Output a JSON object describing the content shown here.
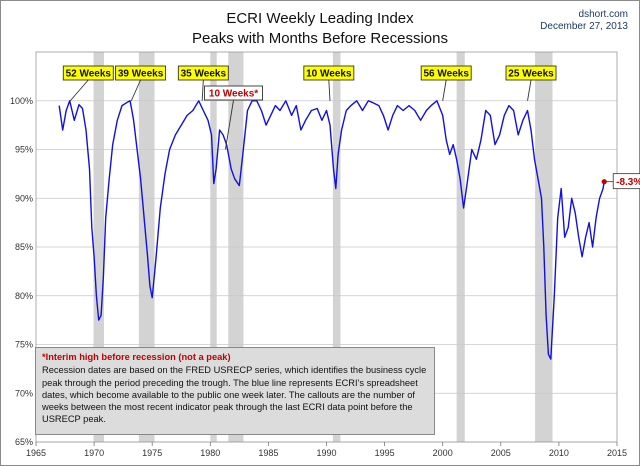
{
  "header": {
    "title_line1": "ECRI Weekly Leading Index",
    "title_line2": "Peaks with Months Before Recessions",
    "source": "dshort.com",
    "date": "December 27, 2013"
  },
  "note": {
    "title": "*Interim high before recession (not a peak)",
    "body": "Recession dates are based on the FRED USRECP series, which identifies the business cycle peak through the period preceding the trough. The blue line represents ECRI's spreadsheet dates, which become available to the public one week later. The callouts are the number of weeks between the most recent indicator peak through the last ECRI data point before the USRECP peak."
  },
  "colors": {
    "line": "#1010e6",
    "recession": "#d3d3d3",
    "callout_fill": "#ffff00",
    "latest_marker": "#c00000",
    "grid": "#c8c8c8"
  },
  "chart_data": {
    "type": "line",
    "title": "ECRI Weekly Leading Index",
    "subtitle": "Peaks with Months Before Recessions",
    "xlim": [
      1965,
      2015
    ],
    "ylim": [
      65,
      105
    ],
    "x_ticks": [
      1965,
      1970,
      1975,
      1980,
      1985,
      1990,
      1995,
      2000,
      2005,
      2010,
      2015
    ],
    "y_ticks": [
      65,
      70,
      75,
      80,
      85,
      90,
      95,
      100
    ],
    "y_tick_labels": [
      "65%",
      "70%",
      "75%",
      "80%",
      "85%",
      "90%",
      "95%",
      "100%"
    ],
    "grid": true,
    "recessions": [
      {
        "start": 1969.95,
        "end": 1970.85
      },
      {
        "start": 1973.85,
        "end": 1975.2
      },
      {
        "start": 1980.0,
        "end": 1980.55
      },
      {
        "start": 1981.55,
        "end": 1982.85
      },
      {
        "start": 1990.55,
        "end": 1991.2
      },
      {
        "start": 2001.2,
        "end": 2001.9
      },
      {
        "start": 2007.95,
        "end": 2009.45
      }
    ],
    "callouts": [
      {
        "text": "52 Weeks",
        "x": 1969.5,
        "target_x": 1967.95,
        "target_y": 100,
        "style": "yellow"
      },
      {
        "text": "39 Weeks",
        "x": 1974.0,
        "target_x": 1973.2,
        "target_y": 100,
        "style": "yellow"
      },
      {
        "text": "35 Weeks",
        "x": 1979.4,
        "target_x": 1979.3,
        "target_y": 100,
        "style": "yellow"
      },
      {
        "text": "10 Weeks",
        "x": 1990.2,
        "target_x": 1990.3,
        "target_y": 100,
        "style": "yellow"
      },
      {
        "text": "56 Weeks",
        "x": 2000.3,
        "target_x": 2000.0,
        "target_y": 100,
        "style": "yellow"
      },
      {
        "text": "25 Weeks",
        "x": 2007.6,
        "target_x": 2007.3,
        "target_y": 100,
        "style": "yellow"
      },
      {
        "text": "10 Weeks*",
        "x": 1982.0,
        "target_x": 1981.3,
        "target_y": 95,
        "style": "white"
      }
    ],
    "latest": {
      "label": "-8.3%",
      "x": 2013.9,
      "y": 91.7
    },
    "series": [
      {
        "x": [
          1967.0,
          1967.3,
          1967.6,
          1967.9,
          1968.3,
          1968.7,
          1969.0,
          1969.3,
          1969.6,
          1969.8,
          1970.0,
          1970.2,
          1970.4,
          1970.6,
          1970.8,
          1971.0,
          1971.3,
          1971.6,
          1972.0,
          1972.4,
          1972.8,
          1973.1,
          1973.4,
          1973.7,
          1974.0,
          1974.3,
          1974.6,
          1974.8,
          1975.0,
          1975.3,
          1975.7,
          1976.1,
          1976.5,
          1977.0,
          1977.5,
          1978.0,
          1978.5,
          1979.0,
          1979.4,
          1979.8,
          1980.1,
          1980.3,
          1980.5,
          1980.8,
          1981.1,
          1981.4,
          1981.8,
          1982.1,
          1982.5,
          1982.8,
          1983.2,
          1983.6,
          1984.0,
          1984.4,
          1984.8,
          1985.2,
          1985.6,
          1986.0,
          1986.5,
          1987.0,
          1987.4,
          1987.8,
          1988.2,
          1988.7,
          1989.2,
          1989.6,
          1990.0,
          1990.3,
          1990.6,
          1990.8,
          1991.0,
          1991.3,
          1991.7,
          1992.1,
          1992.6,
          1993.1,
          1993.6,
          1994.0,
          1994.5,
          1994.9,
          1995.3,
          1995.7,
          1996.1,
          1996.6,
          1997.1,
          1997.6,
          1998.1,
          1998.6,
          1999.0,
          1999.5,
          2000.0,
          2000.3,
          2000.6,
          2000.9,
          2001.2,
          2001.5,
          2001.8,
          2002.1,
          2002.5,
          2002.9,
          2003.3,
          2003.7,
          2004.1,
          2004.5,
          2004.9,
          2005.3,
          2005.7,
          2006.1,
          2006.5,
          2006.9,
          2007.3,
          2007.6,
          2007.9,
          2008.2,
          2008.5,
          2008.7,
          2008.9,
          2009.1,
          2009.3,
          2009.6,
          2009.9,
          2010.2,
          2010.5,
          2010.8,
          2011.1,
          2011.4,
          2011.7,
          2012.0,
          2012.3,
          2012.6,
          2012.9,
          2013.2,
          2013.5,
          2013.8,
          2013.9
        ],
        "values": [
          99.5,
          97.0,
          99.0,
          100.0,
          98.0,
          99.6,
          99.2,
          97.0,
          93.0,
          87.0,
          84.0,
          80.0,
          77.5,
          78.0,
          82.0,
          88.0,
          92.0,
          95.5,
          98.0,
          99.5,
          99.8,
          100.0,
          98.0,
          95.0,
          92.0,
          88.0,
          84.0,
          81.0,
          79.8,
          83.5,
          89.0,
          92.5,
          95.0,
          96.5,
          97.5,
          98.5,
          99.0,
          100.0,
          99.0,
          98.0,
          96.5,
          91.5,
          93.0,
          97.0,
          96.5,
          95.5,
          93.0,
          92.0,
          91.3,
          94.5,
          99.0,
          100.0,
          100.0,
          99.0,
          97.5,
          98.5,
          99.5,
          99.0,
          100.0,
          98.5,
          99.5,
          97.0,
          98.0,
          99.0,
          99.2,
          98.0,
          99.0,
          97.5,
          93.0,
          91.0,
          94.5,
          97.0,
          99.0,
          99.5,
          100.0,
          99.0,
          100.0,
          99.8,
          99.5,
          98.5,
          97.0,
          98.5,
          99.5,
          99.0,
          99.5,
          99.0,
          98.0,
          99.0,
          99.5,
          100.0,
          98.5,
          96.0,
          94.5,
          95.5,
          94.0,
          92.0,
          89.0,
          91.5,
          95.0,
          94.0,
          96.0,
          99.0,
          98.5,
          95.5,
          96.5,
          98.5,
          99.5,
          99.0,
          96.5,
          98.0,
          99.0,
          97.0,
          94.0,
          92.0,
          90.0,
          85.0,
          78.0,
          74.0,
          73.5,
          80.0,
          88.0,
          91.0,
          86.0,
          87.0,
          90.0,
          88.5,
          86.0,
          84.0,
          86.0,
          87.5,
          85.0,
          88.0,
          90.0,
          91.0,
          91.7
        ]
      }
    ]
  }
}
